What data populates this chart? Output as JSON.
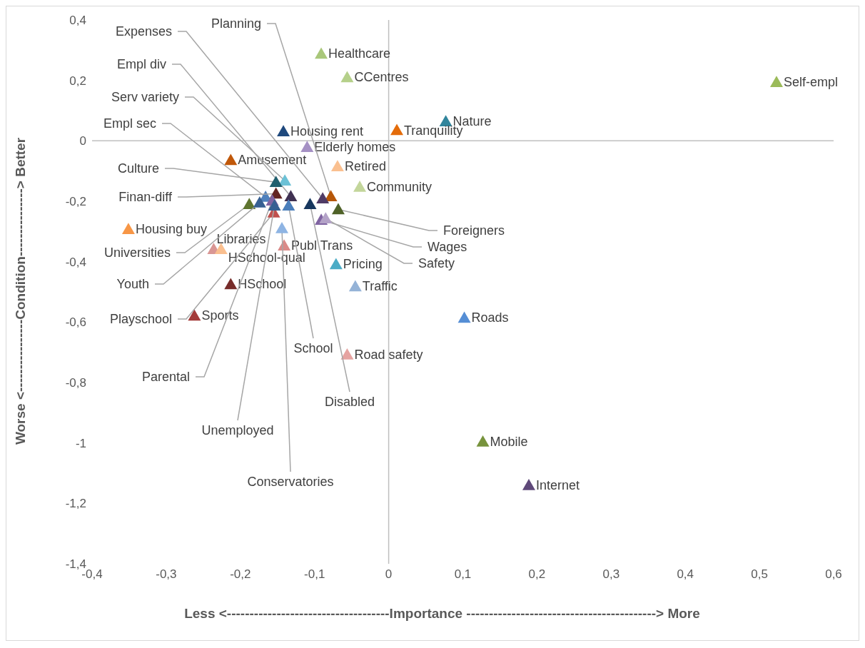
{
  "chart_data": {
    "type": "scatter",
    "marker": "triangle",
    "xlabel": "Less <------------------------------------Importance ------------------------------------------> More",
    "ylabel": "Worse <----------------Condition---------------> Better",
    "xlim": [
      -0.4,
      0.6
    ],
    "ylim": [
      -1.4,
      0.4
    ],
    "xticks": [
      {
        "value": -0.4,
        "label": "-0,4"
      },
      {
        "value": -0.3,
        "label": "-0,3"
      },
      {
        "value": -0.2,
        "label": "-0,2"
      },
      {
        "value": -0.1,
        "label": "-0,1"
      },
      0,
      {
        "value": 0.1,
        "label": "0,1"
      },
      {
        "value": 0.2,
        "label": "0,2"
      },
      {
        "value": 0.3,
        "label": "0,3"
      },
      {
        "value": 0.4,
        "label": "0,4"
      },
      {
        "value": 0.5,
        "label": "0,5"
      },
      {
        "value": 0.6,
        "label": "0,6"
      }
    ],
    "yticks": [
      {
        "value": 0.4,
        "label": "0,4"
      },
      {
        "value": 0.2,
        "label": "0,2"
      },
      0,
      {
        "value": -0.2,
        "label": "-0,2"
      },
      {
        "value": -0.4,
        "label": "-0,4"
      },
      {
        "value": -0.6,
        "label": "-0,6"
      },
      {
        "value": -0.8,
        "label": "-0,8"
      },
      -1,
      {
        "value": -1.2,
        "label": "-1,2"
      },
      {
        "value": -1.4,
        "label": "-1,4"
      }
    ],
    "series": [
      {
        "name": "Self-empl",
        "color": "#9bbb59",
        "x": [
          0.523
        ],
        "values": [
          0.194
        ]
      },
      {
        "name": "Healthcare",
        "color": "#a9c77a",
        "x": [
          -0.091
        ],
        "values": [
          0.288
        ]
      },
      {
        "name": "CCentres",
        "color": "#b5d08a",
        "x": [
          -0.056
        ],
        "values": [
          0.21
        ]
      },
      {
        "name": "Nature",
        "color": "#31859c",
        "x": [
          0.077
        ],
        "values": [
          0.064
        ]
      },
      {
        "name": "Tranquility",
        "color": "#e46c0a",
        "x": [
          0.011
        ],
        "values": [
          0.035
        ]
      },
      {
        "name": "Housing rent",
        "color": "#1f497d",
        "x": [
          -0.142
        ],
        "values": [
          0.031
        ]
      },
      {
        "name": "Elderly homes",
        "color": "#a591c4",
        "x": [
          -0.11
        ],
        "values": [
          -0.021
        ]
      },
      {
        "name": "Amusement",
        "color": "#c0580a",
        "x": [
          -0.213
        ],
        "values": [
          -0.064
        ]
      },
      {
        "name": "Retired",
        "color": "#fac090",
        "x": [
          -0.069
        ],
        "values": [
          -0.085
        ]
      },
      {
        "name": "Community",
        "color": "#c3d69b",
        "x": [
          -0.039
        ],
        "values": [
          -0.153
        ]
      },
      {
        "name": "Housing buy",
        "color": "#f79646",
        "x": [
          -0.351
        ],
        "values": [
          -0.293
        ]
      },
      {
        "name": "Libraries",
        "color": "#d99694",
        "x": [
          -0.236
        ],
        "values": [
          -0.359
        ]
      },
      {
        "name": "HSchool-qual",
        "color": "#fabf8f",
        "x": [
          -0.226
        ],
        "values": [
          -0.359
        ]
      },
      {
        "name": "Publ Trans",
        "color": "#da8a88",
        "x": [
          -0.141
        ],
        "values": [
          -0.347
        ]
      },
      {
        "name": "Pricing",
        "color": "#4bacc6",
        "x": [
          -0.071
        ],
        "values": [
          -0.409
        ]
      },
      {
        "name": "Traffic",
        "color": "#95b3d7",
        "x": [
          -0.045
        ],
        "values": [
          -0.482
        ]
      },
      {
        "name": "HSchool",
        "color": "#772c2a",
        "x": [
          -0.213
        ],
        "values": [
          -0.475
        ]
      },
      {
        "name": "Sports",
        "color": "#a33b39",
        "x": [
          -0.262
        ],
        "values": [
          -0.579
        ]
      },
      {
        "name": "Roads",
        "color": "#558ed5",
        "x": [
          0.102
        ],
        "values": [
          -0.586
        ]
      },
      {
        "name": "Road safety",
        "color": "#e6a3a1",
        "x": [
          -0.056
        ],
        "values": [
          -0.708
        ]
      },
      {
        "name": "Mobile",
        "color": "#77933c",
        "x": [
          0.127
        ],
        "values": [
          -0.996
        ]
      },
      {
        "name": "Internet",
        "color": "#5f497a",
        "x": [
          0.189
        ],
        "values": [
          -1.14
        ]
      },
      {
        "name": "Planning",
        "color": "#b65708",
        "x": [
          -0.078
        ],
        "values": [
          -0.184
        ]
      },
      {
        "name": "Expenses",
        "color": "#4f3b66",
        "x": [
          -0.089
        ],
        "values": [
          -0.191
        ]
      },
      {
        "name": "Empl div",
        "color": "#403152",
        "x": [
          -0.132
        ],
        "values": [
          -0.184
        ]
      },
      {
        "name": "Serv variety",
        "color": "#6cc1d6",
        "x": [
          -0.14
        ],
        "values": [
          -0.132
        ]
      },
      {
        "name": "Empl sec",
        "color": "#4f81bd",
        "x": [
          -0.166
        ],
        "values": [
          -0.186
        ]
      },
      {
        "name": "Culture",
        "color": "#215f6e",
        "x": [
          -0.152
        ],
        "values": [
          -0.137
        ]
      },
      {
        "name": "Finan-diff",
        "color": "#632523",
        "x": [
          -0.152
        ],
        "values": [
          -0.175
        ]
      },
      {
        "name": "Universities",
        "color": "#5f7530",
        "x": [
          -0.188
        ],
        "values": [
          -0.21
        ]
      },
      {
        "name": "Youth",
        "color": "#376092",
        "x": [
          -0.174
        ],
        "values": [
          -0.205
        ]
      },
      {
        "name": "Playschool",
        "color": "#c0504d",
        "x": [
          -0.155
        ],
        "values": [
          -0.238
        ]
      },
      {
        "name": "Parental",
        "color": "#8064a2",
        "x": [
          -0.157
        ],
        "values": [
          -0.198
        ]
      },
      {
        "name": "Unemployed",
        "color": "#366092",
        "x": [
          -0.154
        ],
        "values": [
          -0.215
        ]
      },
      {
        "name": "Conservatories",
        "color": "#8eb4e3",
        "x": [
          -0.144
        ],
        "values": [
          -0.29
        ]
      },
      {
        "name": "School",
        "color": "#4a7ebb",
        "x": [
          -0.135
        ],
        "values": [
          -0.215
        ]
      },
      {
        "name": "Disabled",
        "color": "#17375e",
        "x": [
          -0.106
        ],
        "values": [
          -0.21
        ]
      },
      {
        "name": "Foreigners",
        "color": "#4f6228",
        "x": [
          -0.068
        ],
        "values": [
          -0.227
        ]
      },
      {
        "name": "Wages",
        "color": "#8064a2",
        "x": [
          -0.091
        ],
        "values": [
          -0.262
        ]
      },
      {
        "name": "Safety",
        "color": "#b3a2c7",
        "x": [
          -0.085
        ],
        "values": [
          -0.257
        ]
      }
    ]
  }
}
